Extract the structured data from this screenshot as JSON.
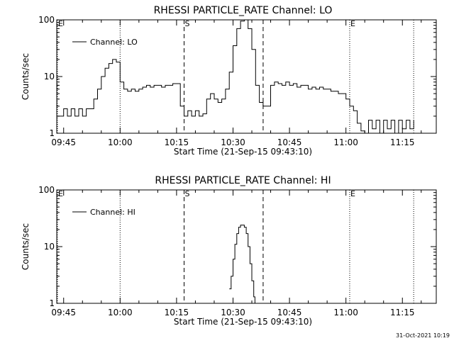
{
  "footer": {
    "date": "31-Oct-2021 10:19"
  },
  "chart_data": [
    {
      "type": "line",
      "title": "RHESSI PARTICLE_RATE Channel: LO",
      "xlabel": "Start Time (21-Sep-15 09:43:10)",
      "ylabel": "Counts/sec",
      "yscale": "log",
      "ylim": [
        1,
        100
      ],
      "xlim": [
        "09:43:10",
        "11:24:00"
      ],
      "x_ticks": [
        "09:45",
        "10:00",
        "10:15",
        "10:30",
        "10:45",
        "11:00",
        "11:15"
      ],
      "y_ticks": [
        "1",
        "10",
        "100"
      ],
      "legend": {
        "position": "top-left",
        "entries": [
          "Channel: LO"
        ]
      },
      "markers": [
        {
          "time": "09:43:10",
          "label": "E",
          "style": "dotted"
        },
        {
          "time": "10:00:00",
          "label": "",
          "style": "dotted"
        },
        {
          "time": "10:17:00",
          "label": "S",
          "style": "dashed"
        },
        {
          "time": "10:38:00",
          "label": "",
          "style": "dashed"
        },
        {
          "time": "11:01:00",
          "label": "E",
          "style": "dotted"
        },
        {
          "time": "11:18:00",
          "label": "",
          "style": "dotted"
        }
      ],
      "series": [
        {
          "name": "Channel: LO",
          "x": [
            "09:43:10",
            "09:45:00",
            "09:46:00",
            "09:47:00",
            "09:48:00",
            "09:49:00",
            "09:50:00",
            "09:51:00",
            "09:52:00",
            "09:53:00",
            "09:54:00",
            "09:55:00",
            "09:56:00",
            "09:57:00",
            "09:58:00",
            "09:59:00",
            "10:00:00",
            "10:01:00",
            "10:02:00",
            "10:03:00",
            "10:04:00",
            "10:05:00",
            "10:06:00",
            "10:07:00",
            "10:08:00",
            "10:09:00",
            "10:10:00",
            "10:11:00",
            "10:12:00",
            "10:13:00",
            "10:14:00",
            "10:15:00",
            "10:16:00",
            "10:17:00",
            "10:18:00",
            "10:19:00",
            "10:20:00",
            "10:21:00",
            "10:22:00",
            "10:23:00",
            "10:24:00",
            "10:25:00",
            "10:26:00",
            "10:27:00",
            "10:28:00",
            "10:29:00",
            "10:30:00",
            "10:31:00",
            "10:32:00",
            "10:33:00",
            "10:34:00",
            "10:35:00",
            "10:36:00",
            "10:37:00",
            "10:38:00",
            "10:39:00",
            "10:40:00",
            "10:41:00",
            "10:42:00",
            "10:43:00",
            "10:44:00",
            "10:45:00",
            "10:46:00",
            "10:47:00",
            "10:48:00",
            "10:49:00",
            "10:50:00",
            "10:51:00",
            "10:52:00",
            "10:53:00",
            "10:54:00",
            "10:55:00",
            "10:56:00",
            "10:57:00",
            "10:58:00",
            "10:59:00",
            "11:00:00",
            "11:01:00",
            "11:02:00",
            "11:03:00",
            "11:04:00",
            "11:05:00",
            "11:06:00",
            "11:07:00",
            "11:08:00",
            "11:09:00",
            "11:10:00",
            "11:11:00",
            "11:12:00",
            "11:13:00",
            "11:14:00",
            "11:15:00",
            "11:16:00",
            "11:17:00",
            "11:18:00"
          ],
          "values": [
            2,
            2.7,
            2,
            2.7,
            2,
            2.7,
            2,
            2.7,
            2.7,
            4,
            6,
            10,
            14,
            17,
            20,
            18,
            8,
            6,
            5.5,
            6,
            5.5,
            6,
            6.5,
            7,
            6.5,
            7,
            7,
            6.5,
            7,
            7,
            7.5,
            7.5,
            3,
            2,
            2.5,
            2,
            2.5,
            2,
            2.2,
            4,
            5,
            4,
            3.5,
            4,
            6,
            12,
            35,
            70,
            95,
            100,
            70,
            30,
            7,
            3.5,
            3,
            3,
            7,
            8,
            7.5,
            7,
            8,
            7,
            7.5,
            6.5,
            7,
            7,
            6,
            6.5,
            6,
            6.5,
            6,
            6,
            5.5,
            5.5,
            5,
            5,
            4,
            3,
            2.5,
            1.5,
            1.1,
            1,
            1.7,
            1.2,
            1.7,
            1,
            1.7,
            1.2,
            1.7,
            1,
            1.7,
            1.2,
            1.7,
            1.2,
            1.7
          ]
        }
      ]
    },
    {
      "type": "line",
      "title": "RHESSI PARTICLE_RATE Channel: HI",
      "xlabel": "Start Time (21-Sep-15 09:43:10)",
      "ylabel": "Counts/sec",
      "yscale": "log",
      "ylim": [
        1,
        100
      ],
      "xlim": [
        "09:43:10",
        "11:24:00"
      ],
      "x_ticks": [
        "09:45",
        "10:00",
        "10:15",
        "10:30",
        "10:45",
        "11:00",
        "11:15"
      ],
      "y_ticks": [
        "1",
        "10",
        "100"
      ],
      "legend": {
        "position": "top-left",
        "entries": [
          "Channel: HI"
        ]
      },
      "markers": [
        {
          "time": "09:43:10",
          "label": "E",
          "style": "dotted"
        },
        {
          "time": "10:00:00",
          "label": "",
          "style": "dotted"
        },
        {
          "time": "10:17:00",
          "label": "S",
          "style": "dashed"
        },
        {
          "time": "10:38:00",
          "label": "",
          "style": "dashed"
        },
        {
          "time": "11:01:00",
          "label": "E",
          "style": "dotted"
        },
        {
          "time": "11:18:00",
          "label": "",
          "style": "dotted"
        }
      ],
      "series": [
        {
          "name": "Channel: HI",
          "x": [
            "10:29:00",
            "10:29:30",
            "10:30:00",
            "10:30:30",
            "10:31:00",
            "10:31:30",
            "10:32:00",
            "10:32:30",
            "10:33:00",
            "10:33:30",
            "10:34:00",
            "10:34:30",
            "10:35:00",
            "10:35:30",
            "10:35:50"
          ],
          "values": [
            1.8,
            3,
            6,
            11,
            17,
            22,
            24,
            24,
            22,
            17,
            10,
            5,
            2.5,
            1.3,
            1
          ]
        }
      ]
    }
  ]
}
